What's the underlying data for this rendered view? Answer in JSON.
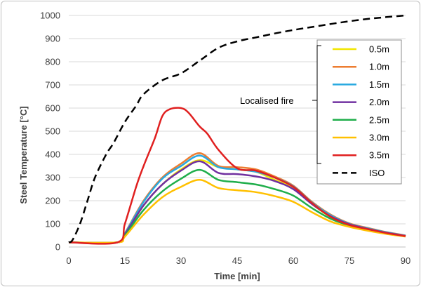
{
  "chart_data": {
    "type": "line",
    "xlabel": "Time [min]",
    "ylabel": "Steel Temperature [°C]",
    "xlim": [
      0,
      90
    ],
    "ylim": [
      0,
      1000
    ],
    "xticks": [
      0,
      15,
      30,
      45,
      60,
      75,
      90
    ],
    "yticks": [
      0,
      100,
      200,
      300,
      400,
      500,
      600,
      700,
      800,
      900,
      1000
    ],
    "grid": "horizontal",
    "legend_position": "right",
    "annotation": "Localised fire",
    "series": [
      {
        "name": "0.5m",
        "color": "#f2e600",
        "dash": false,
        "x": [
          0,
          13,
          15,
          20,
          25,
          30,
          35,
          40,
          45,
          50,
          55,
          60,
          65,
          70,
          75,
          80,
          85,
          90
        ],
        "y": [
          20,
          20,
          50,
          180,
          270,
          335,
          375,
          345,
          335,
          325,
          290,
          255,
          185,
          130,
          98,
          80,
          62,
          48
        ]
      },
      {
        "name": "1.0m",
        "color": "#ed7d31",
        "dash": false,
        "x": [
          0,
          13,
          15,
          20,
          25,
          30,
          35,
          40,
          45,
          50,
          55,
          60,
          65,
          70,
          75,
          80,
          85,
          90
        ],
        "y": [
          20,
          20,
          60,
          200,
          300,
          360,
          405,
          350,
          345,
          335,
          305,
          265,
          195,
          140,
          102,
          82,
          64,
          50
        ]
      },
      {
        "name": "1.5m",
        "color": "#29a9e0",
        "dash": false,
        "x": [
          0,
          13,
          15,
          20,
          25,
          30,
          35,
          40,
          45,
          50,
          55,
          60,
          65,
          70,
          75,
          80,
          85,
          90
        ],
        "y": [
          20,
          20,
          58,
          195,
          295,
          350,
          395,
          345,
          335,
          325,
          300,
          262,
          192,
          137,
          100,
          80,
          63,
          49
        ]
      },
      {
        "name": "2.0m",
        "color": "#7030a0",
        "dash": false,
        "x": [
          0,
          13,
          15,
          20,
          25,
          30,
          35,
          40,
          45,
          50,
          55,
          60,
          65,
          70,
          75,
          80,
          85,
          90
        ],
        "y": [
          20,
          20,
          55,
          180,
          270,
          330,
          370,
          320,
          315,
          305,
          285,
          250,
          185,
          132,
          98,
          78,
          61,
          48
        ]
      },
      {
        "name": "2.5m",
        "color": "#1fae4b",
        "dash": false,
        "x": [
          0,
          13,
          15,
          20,
          25,
          30,
          35,
          40,
          45,
          50,
          55,
          60,
          65,
          70,
          75,
          80,
          85,
          90
        ],
        "y": [
          20,
          20,
          50,
          160,
          240,
          295,
          333,
          290,
          280,
          270,
          250,
          222,
          168,
          122,
          93,
          75,
          58,
          46
        ]
      },
      {
        "name": "3.0m",
        "color": "#ffc000",
        "dash": false,
        "x": [
          0,
          13,
          15,
          20,
          25,
          30,
          35,
          40,
          45,
          50,
          55,
          60,
          65,
          70,
          75,
          80,
          85,
          90
        ],
        "y": [
          20,
          20,
          45,
          140,
          215,
          260,
          290,
          255,
          245,
          237,
          220,
          195,
          150,
          110,
          87,
          70,
          56,
          45
        ]
      },
      {
        "name": "3.5m",
        "color": "#e02020",
        "dash": false,
        "x": [
          0,
          13,
          15,
          18,
          20,
          23,
          25,
          27,
          30,
          32,
          35,
          37,
          40,
          45,
          50,
          55,
          60,
          65,
          70,
          75,
          80,
          85,
          90
        ],
        "y": [
          20,
          20,
          100,
          260,
          350,
          470,
          565,
          595,
          600,
          580,
          520,
          490,
          420,
          340,
          330,
          300,
          260,
          190,
          130,
          95,
          77,
          60,
          47
        ]
      },
      {
        "name": "ISO",
        "color": "#000000",
        "dash": true,
        "x": [
          0,
          1,
          3,
          5,
          7,
          10,
          12,
          15,
          18,
          20,
          25,
          30,
          35,
          40,
          45,
          50,
          55,
          60,
          65,
          70,
          75,
          80,
          85,
          90
        ],
        "y": [
          20,
          30,
          100,
          200,
          300,
          400,
          450,
          540,
          610,
          660,
          720,
          750,
          805,
          860,
          888,
          905,
          922,
          937,
          950,
          963,
          975,
          985,
          993,
          1000
        ]
      }
    ]
  }
}
